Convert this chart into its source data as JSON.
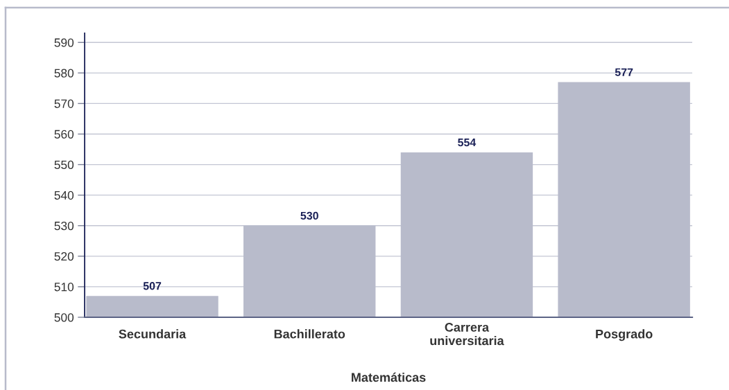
{
  "chart_data": {
    "type": "bar",
    "xlabel": "Matemáticas",
    "categories": [
      "Secundaria",
      "Bachillerato",
      "Carrera\nuniversitaria",
      "Posgrado"
    ],
    "values": [
      507,
      530,
      554,
      577
    ],
    "color": "#b8bbcb",
    "ylim": [
      500,
      593
    ],
    "yticks": [
      500,
      510,
      520,
      530,
      540,
      550,
      560,
      570,
      580,
      590
    ],
    "grid": "y",
    "data_labels": true
  }
}
